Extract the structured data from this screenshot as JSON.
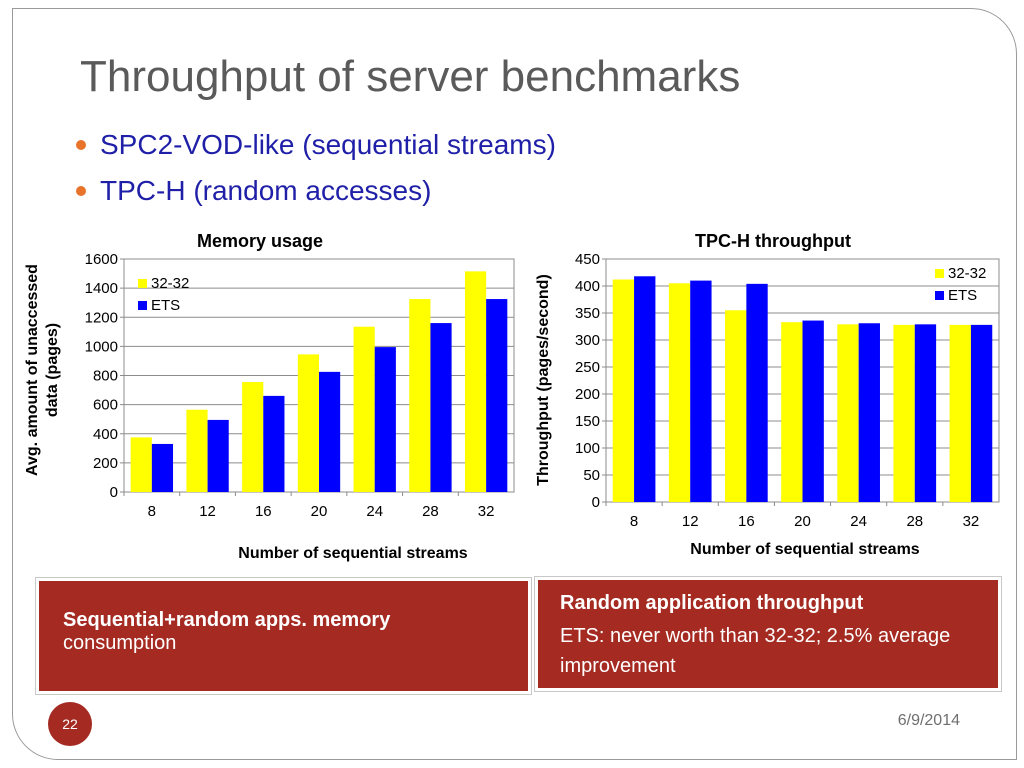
{
  "slide": {
    "title": "Throughput of server benchmarks",
    "bullets": [
      "SPC2-VOD-like (sequential streams)",
      "TPC-H (random accesses)"
    ],
    "page_number": "22",
    "date": "6/9/2014"
  },
  "captions": {
    "left": {
      "bold": "Sequential+random apps. memory",
      "normal": "consumption"
    },
    "right": {
      "bold": "Random application throughput",
      "normal": "ETS: never worth than 32-32; 2.5% average improvement"
    }
  },
  "colors": {
    "series_32_32": "#ffff00",
    "series_ets": "#0000ff",
    "accent": "#a52b22",
    "bullet": "#e8732a"
  },
  "chart_data": [
    {
      "type": "bar",
      "title": "Memory usage",
      "xlabel": "Number of sequential streams",
      "ylabel": "Avg. amount of  unaccessed data (pages)",
      "categories": [
        "8",
        "12",
        "16",
        "20",
        "24",
        "28",
        "32"
      ],
      "ylim": [
        0,
        1600
      ],
      "yticks": [
        "0",
        "200",
        "400",
        "600",
        "800",
        "1000",
        "1200",
        "1400",
        "1600"
      ],
      "legend_position": "top-left",
      "grid": true,
      "series": [
        {
          "name": "32-32",
          "values": [
            375,
            565,
            755,
            945,
            1135,
            1325,
            1515
          ]
        },
        {
          "name": "ETS",
          "values": [
            330,
            495,
            660,
            825,
            995,
            1160,
            1325
          ]
        }
      ]
    },
    {
      "type": "bar",
      "title": "TPC-H throughput",
      "xlabel": "Number of sequential streams",
      "ylabel": "Throughput (pages/second)",
      "categories": [
        "8",
        "12",
        "16",
        "20",
        "24",
        "28",
        "32"
      ],
      "ylim": [
        0,
        450
      ],
      "yticks": [
        "0",
        "50",
        "100",
        "150",
        "200",
        "250",
        "300",
        "350",
        "400",
        "450"
      ],
      "legend_position": "top-right",
      "grid": true,
      "series": [
        {
          "name": "32-32",
          "values": [
            412,
            405,
            355,
            333,
            329,
            328,
            328
          ]
        },
        {
          "name": "ETS",
          "values": [
            418,
            410,
            404,
            336,
            331,
            329,
            328
          ]
        }
      ]
    }
  ]
}
